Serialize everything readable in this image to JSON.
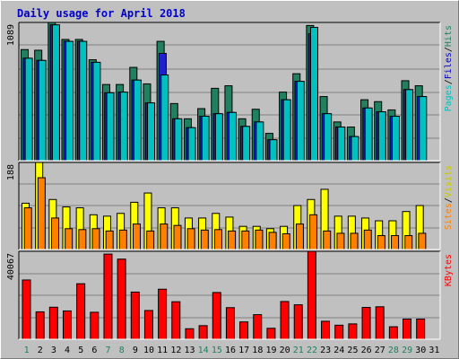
{
  "chart_data": {
    "type": "bar",
    "title": "Daily usage for April 2018",
    "days": [
      "1",
      "2",
      "3",
      "4",
      "5",
      "6",
      "7",
      "8",
      "9",
      "10",
      "11",
      "12",
      "13",
      "14",
      "15",
      "16",
      "17",
      "18",
      "19",
      "20",
      "21",
      "22",
      "23",
      "24",
      "25",
      "26",
      "27",
      "28",
      "29",
      "30",
      "31"
    ],
    "weekend_days": [
      "1",
      "7",
      "8",
      "14",
      "15",
      "21",
      "22",
      "28",
      "29"
    ],
    "panels": [
      {
        "id": "top",
        "max_label": "1089",
        "ylim": [
          0,
          1089
        ],
        "series": [
          {
            "name": "Pages",
            "color": "#00c0c0",
            "values": [
              807,
              790,
              1070,
              940,
              940,
              775,
              535,
              540,
              635,
              455,
              675,
              330,
              260,
              350,
              370,
              380,
              270,
              305,
              165,
              480,
              625,
              1050,
              370,
              265,
              190,
              415,
              385,
              350,
              560,
              505,
              0
            ]
          },
          {
            "name": "Files",
            "color": "#2020d0",
            "values": [
              807,
              790,
              1070,
              940,
              940,
              775,
              535,
              540,
              635,
              455,
              845,
              330,
              260,
              350,
              370,
              380,
              270,
              305,
              165,
              480,
              625,
              1000,
              370,
              265,
              190,
              415,
              385,
              350,
              560,
              505,
              0
            ]
          },
          {
            "name": "Hits",
            "color": "#208060",
            "values": [
              875,
              870,
              1089,
              955,
              955,
              795,
              600,
              600,
              735,
              605,
              940,
              450,
              330,
              410,
              570,
              590,
              330,
              405,
              215,
              540,
              685,
              1065,
              505,
              305,
              265,
              480,
              465,
              400,
              630,
              590,
              0
            ]
          }
        ]
      },
      {
        "id": "mid",
        "max_label": "188",
        "ylim": [
          0,
          188
        ],
        "series": [
          {
            "name": "Sites",
            "color": "#ff8000",
            "values": [
              90,
              155,
              68,
              45,
              43,
              45,
              40,
              42,
              55,
              40,
              55,
              52,
              45,
              42,
              43,
              40,
              40,
              42,
              37,
              34,
              55,
              75,
              40,
              35,
              35,
              42,
              30,
              30,
              30,
              35,
              0
            ]
          },
          {
            "name": "Visits",
            "color": "#ffff00",
            "values": [
              100,
              188,
              108,
              92,
              90,
              75,
              72,
              78,
              102,
              122,
              90,
              90,
              68,
              68,
              78,
              70,
              50,
              50,
              45,
              50,
              95,
              108,
              130,
              72,
              72,
              68,
              62,
              62,
              82,
              95,
              0
            ]
          }
        ]
      },
      {
        "id": "bot",
        "max_label": "40067",
        "ylim": [
          0,
          40067
        ],
        "series": [
          {
            "name": "KBytes",
            "color": "#ff0000",
            "values": [
              27000,
              12500,
              14600,
              12900,
              25300,
              12300,
              38800,
              36500,
              21500,
              13100,
              22800,
              17100,
              4800,
              6200,
              21300,
              14400,
              7900,
              11200,
              5000,
              17200,
              15700,
              40067,
              8200,
              6400,
              7000,
              14500,
              14800,
              5700,
              9200,
              9200,
              0
            ]
          }
        ]
      }
    ],
    "legend": {
      "top": [
        {
          "text": "Pages",
          "color": "#00c0c0"
        },
        {
          "text": "/",
          "color": "#000000"
        },
        {
          "text": "Files",
          "color": "#0000c8"
        },
        {
          "text": "/",
          "color": "#000000"
        },
        {
          "text": "Hits",
          "color": "#208060"
        }
      ],
      "mid": [
        {
          "text": "Sites",
          "color": "#ff8000"
        },
        {
          "text": "/",
          "color": "#000000"
        },
        {
          "text": "Visits",
          "color": "#c8c800"
        }
      ],
      "bot": [
        {
          "text": "KBytes",
          "color": "#ff0000"
        }
      ]
    }
  }
}
